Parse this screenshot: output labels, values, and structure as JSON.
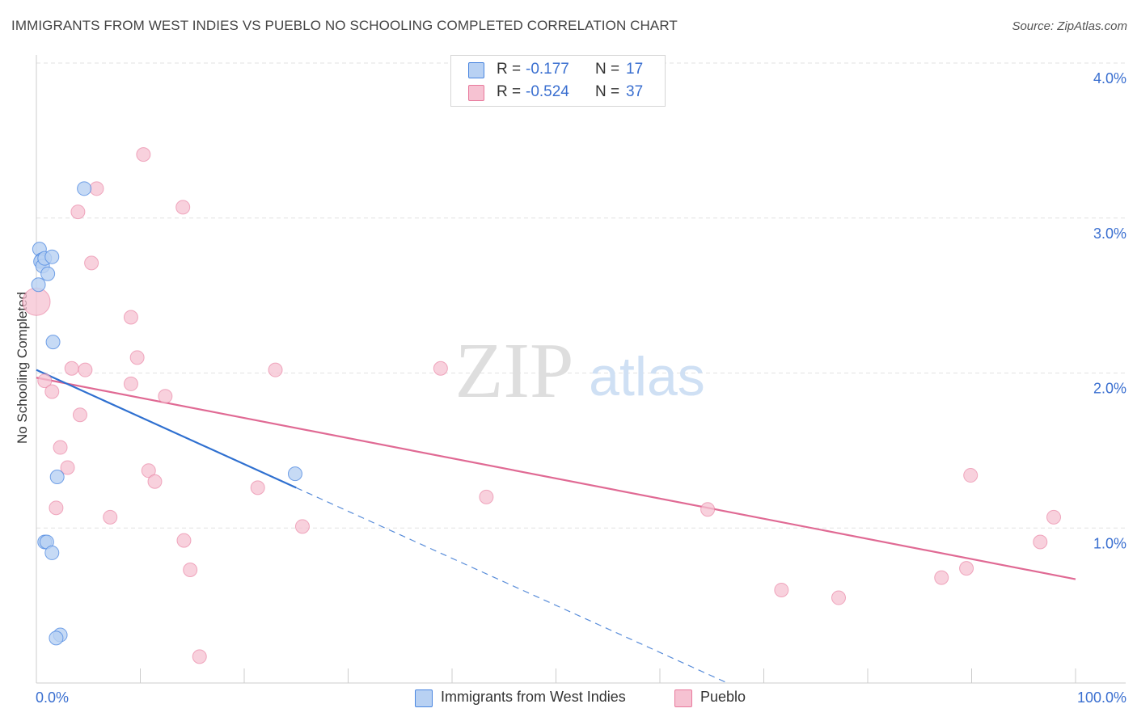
{
  "title": "IMMIGRANTS FROM WEST INDIES VS PUEBLO NO SCHOOLING COMPLETED CORRELATION CHART",
  "source": "Source: ZipAtlas.com",
  "watermark": {
    "zip": "ZIP",
    "atlas": "atlas"
  },
  "colors": {
    "blue": "#4a86e0",
    "blue_fill": "#b8d1f3",
    "blue_line": "#2f70d0",
    "pink": "#e8799c",
    "pink_fill": "#f6c2d2",
    "pink_line": "#e06a94",
    "axis_label": "#3a6fd0"
  },
  "legend": {
    "rows": [
      {
        "r_label": "R =",
        "r_value": "-0.177",
        "n_label": "N =",
        "n_value": "17"
      },
      {
        "r_label": "R =",
        "r_value": "-0.524",
        "n_label": "N =",
        "n_value": "37"
      }
    ]
  },
  "bottom_legend": [
    "Immigrants from West Indies",
    "Pueblo"
  ],
  "chart_data": {
    "type": "scatter",
    "title": "IMMIGRANTS FROM WEST INDIES VS PUEBLO NO SCHOOLING COMPLETED CORRELATION CHART",
    "xlabel": "",
    "ylabel": "No Schooling Completed",
    "xlim": [
      0,
      100
    ],
    "ylim": [
      0,
      4.0
    ],
    "x_tick_labels": [
      "0.0%",
      "100.0%"
    ],
    "y_ticks": [
      1.0,
      2.0,
      3.0,
      4.0
    ],
    "y_tick_labels": [
      "1.0%",
      "2.0%",
      "3.0%",
      "4.0%"
    ],
    "grid": true,
    "series": [
      {
        "name": "Immigrants from West Indies",
        "points": [
          {
            "x": 0.3,
            "y": 2.8
          },
          {
            "x": 0.5,
            "y": 2.73
          },
          {
            "x": 0.4,
            "y": 2.72
          },
          {
            "x": 0.6,
            "y": 2.69
          },
          {
            "x": 0.8,
            "y": 2.74
          },
          {
            "x": 1.5,
            "y": 2.75
          },
          {
            "x": 1.1,
            "y": 2.64
          },
          {
            "x": 0.2,
            "y": 2.57
          },
          {
            "x": 1.6,
            "y": 2.2
          },
          {
            "x": 4.6,
            "y": 3.19
          },
          {
            "x": 2.0,
            "y": 1.33
          },
          {
            "x": 0.8,
            "y": 0.91
          },
          {
            "x": 1.0,
            "y": 0.91
          },
          {
            "x": 1.5,
            "y": 0.84
          },
          {
            "x": 2.3,
            "y": 0.31
          },
          {
            "x": 1.9,
            "y": 0.29
          },
          {
            "x": 24.9,
            "y": 1.35
          }
        ],
        "trend": {
          "x": [
            0,
            25
          ],
          "y": [
            2.02,
            1.26
          ]
        },
        "trend_extension": {
          "x": [
            25,
            66.5
          ],
          "y": [
            1.26,
            0.0
          ]
        }
      },
      {
        "name": "Pueblo",
        "points": [
          {
            "x": 0.0,
            "y": 2.46
          },
          {
            "x": 0.8,
            "y": 1.95
          },
          {
            "x": 1.5,
            "y": 1.88
          },
          {
            "x": 1.9,
            "y": 1.13
          },
          {
            "x": 2.3,
            "y": 1.52
          },
          {
            "x": 3.0,
            "y": 1.39
          },
          {
            "x": 3.4,
            "y": 2.03
          },
          {
            "x": 4.0,
            "y": 3.04
          },
          {
            "x": 4.2,
            "y": 1.73
          },
          {
            "x": 4.7,
            "y": 2.02
          },
          {
            "x": 5.3,
            "y": 2.71
          },
          {
            "x": 5.8,
            "y": 3.19
          },
          {
            "x": 7.1,
            "y": 1.07
          },
          {
            "x": 9.1,
            "y": 2.36
          },
          {
            "x": 9.1,
            "y": 1.93
          },
          {
            "x": 9.7,
            "y": 2.1
          },
          {
            "x": 10.3,
            "y": 3.41
          },
          {
            "x": 10.8,
            "y": 1.37
          },
          {
            "x": 11.4,
            "y": 1.3
          },
          {
            "x": 12.4,
            "y": 1.85
          },
          {
            "x": 14.1,
            "y": 3.07
          },
          {
            "x": 14.2,
            "y": 0.92
          },
          {
            "x": 14.8,
            "y": 0.73
          },
          {
            "x": 15.7,
            "y": 0.17
          },
          {
            "x": 21.3,
            "y": 1.26
          },
          {
            "x": 23.0,
            "y": 2.02
          },
          {
            "x": 25.6,
            "y": 1.01
          },
          {
            "x": 38.9,
            "y": 2.03
          },
          {
            "x": 43.3,
            "y": 1.2
          },
          {
            "x": 64.6,
            "y": 1.12
          },
          {
            "x": 71.7,
            "y": 0.6
          },
          {
            "x": 77.2,
            "y": 0.55
          },
          {
            "x": 87.1,
            "y": 0.68
          },
          {
            "x": 89.5,
            "y": 0.74
          },
          {
            "x": 89.9,
            "y": 1.34
          },
          {
            "x": 96.6,
            "y": 0.91
          },
          {
            "x": 97.9,
            "y": 1.07
          }
        ],
        "trend": {
          "x": [
            0,
            100
          ],
          "y": [
            1.97,
            0.67
          ]
        }
      }
    ]
  }
}
